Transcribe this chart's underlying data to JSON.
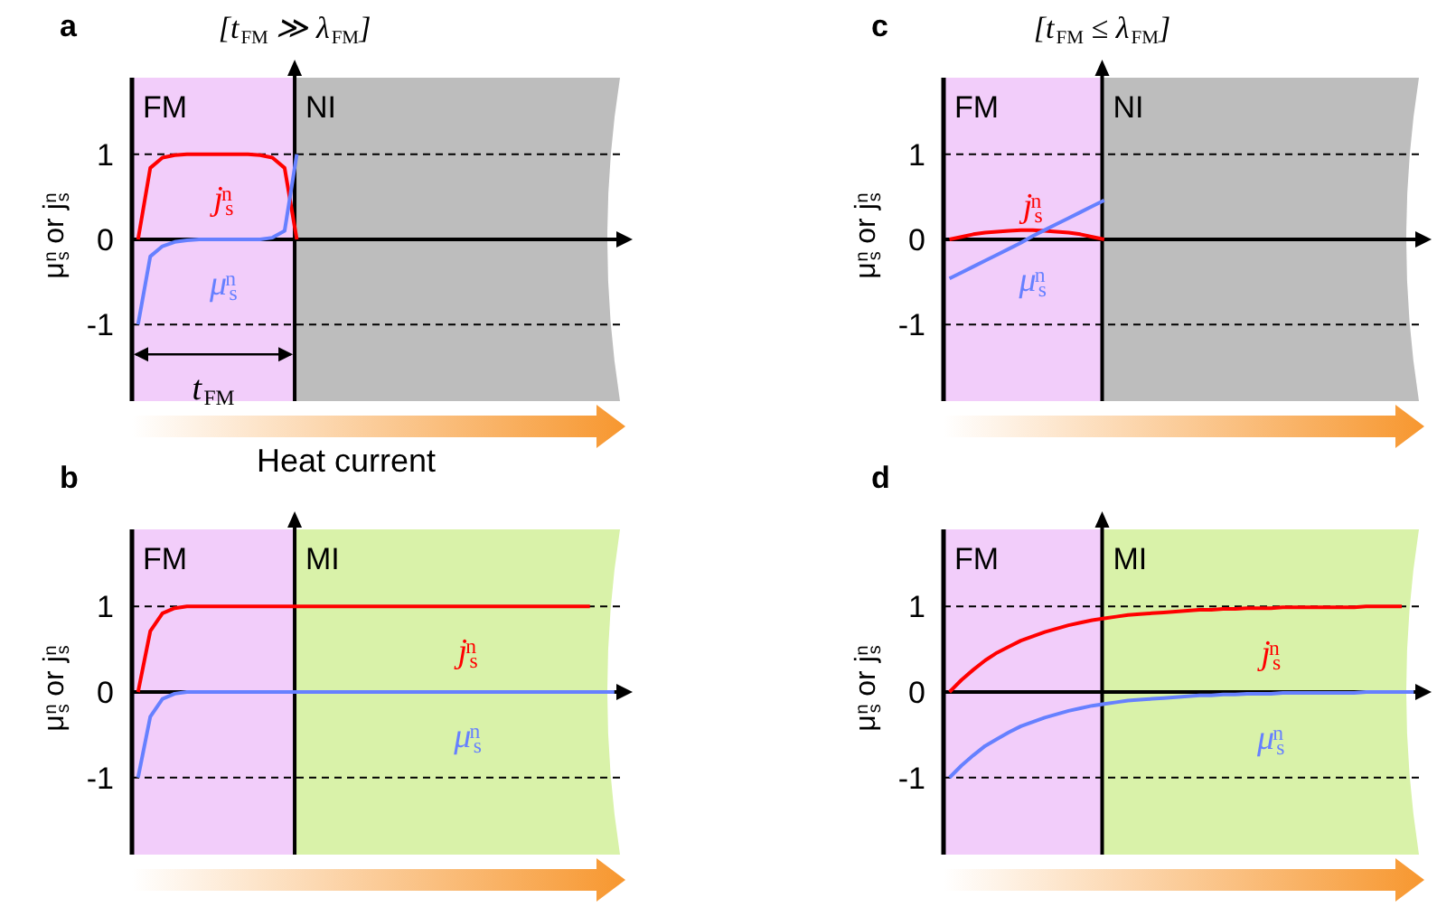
{
  "chart_data": [
    {
      "type": "line",
      "title": "a",
      "subtitle": "[t$_{FM}$ ≫ λ$_{FM}$]",
      "ylabel": "μ$_{s}$$^{n}$ or j$_{s}$$^{n}$",
      "ylim": [
        -1.9,
        1.9
      ],
      "yticks": [
        1,
        0,
        -1
      ],
      "tick_labels": "y",
      "grid": "y",
      "categories": [
        null,
        null,
        null,
        null,
        null,
        null,
        null,
        null,
        null,
        null,
        null,
        null,
        null,
        null,
        null,
        null,
        null,
        null,
        null,
        null,
        null,
        null,
        null,
        null,
        null,
        null,
        null,
        null,
        null,
        null,
        null,
        null,
        null,
        null,
        null,
        null,
        null,
        null,
        null,
        null,
        null
      ],
      "series": [
        {
          "name": "j$_{s}$$^{n}$",
          "color": "#ff0000",
          "values": [
            0,
            0.84,
            0.96,
            0.99,
            1,
            1,
            1,
            1,
            1,
            1,
            0.99,
            0.96,
            0.84,
            0,
            null,
            null,
            null,
            null,
            null,
            null,
            null,
            null,
            null,
            null,
            null,
            null,
            null,
            null,
            null,
            null,
            null,
            null,
            null,
            null,
            null,
            null,
            null,
            null,
            null,
            null,
            null
          ]
        },
        {
          "name": "μ$_{s}$$^{n}$",
          "color": "#6680ff",
          "values": [
            -1,
            -0.2,
            -0.08,
            -0.03,
            -0.01,
            0,
            0,
            0,
            0,
            0,
            0,
            0.02,
            0.1,
            1,
            null,
            null,
            null,
            null,
            null,
            null,
            null,
            null,
            null,
            null,
            null,
            null,
            null,
            null,
            null,
            null,
            null,
            null,
            null,
            null,
            null,
            null,
            null,
            null,
            null,
            null,
            null
          ]
        }
      ],
      "annotations": [
        "FM",
        "NI",
        "t$_{FM}$",
        "Heat current"
      ]
    },
    {
      "type": "line",
      "title": "c",
      "subtitle": "[t$_{FM}$ ≤ λ$_{FM}$]",
      "ylabel": "μ$_{s}$$^{n}$ or j$_{s}$$^{n}$",
      "ylim": [
        -1.9,
        1.9
      ],
      "yticks": [
        1,
        0,
        -1
      ],
      "tick_labels": "y",
      "grid": "y",
      "categories": [
        null,
        null,
        null,
        null,
        null,
        null,
        null,
        null,
        null,
        null,
        null,
        null,
        null,
        null,
        null,
        null,
        null,
        null,
        null,
        null,
        null,
        null,
        null,
        null,
        null,
        null,
        null,
        null,
        null,
        null,
        null,
        null,
        null,
        null,
        null,
        null,
        null,
        null,
        null,
        null,
        null
      ],
      "series": [
        {
          "name": "j$_{s}$$^{n}$",
          "color": "#ff0000",
          "values": [
            0,
            0.03,
            0.06,
            0.08,
            0.09,
            0.1,
            0.11,
            0.11,
            0.1,
            0.09,
            0.08,
            0.06,
            0.03,
            0,
            null,
            null,
            null,
            null,
            null,
            null,
            null,
            null,
            null,
            null,
            null,
            null,
            null,
            null,
            null,
            null,
            null,
            null,
            null,
            null,
            null,
            null,
            null,
            null,
            null,
            null,
            null
          ]
        },
        {
          "name": "μ$_{s}$$^{n}$",
          "color": "#6680ff",
          "values": [
            -0.46,
            -0.39,
            -0.32,
            -0.25,
            -0.18,
            -0.11,
            -0.04,
            0.04,
            0.11,
            0.18,
            0.25,
            0.32,
            0.39,
            0.46,
            null,
            null,
            null,
            null,
            null,
            null,
            null,
            null,
            null,
            null,
            null,
            null,
            null,
            null,
            null,
            null,
            null,
            null,
            null,
            null,
            null,
            null,
            null,
            null,
            null,
            null,
            null
          ]
        }
      ],
      "annotations": [
        "FM",
        "NI"
      ]
    },
    {
      "type": "line",
      "title": "b",
      "ylabel": "μ$_{s}$$^{n}$ or j$_{s}$$^{n}$",
      "ylim": [
        -1.9,
        1.9
      ],
      "yticks": [
        1,
        0,
        -1
      ],
      "tick_labels": "y",
      "grid": "y",
      "categories": [
        null,
        null,
        null,
        null,
        null,
        null,
        null,
        null,
        null,
        null,
        null,
        null,
        null,
        null,
        null,
        null,
        null,
        null,
        null,
        null,
        null,
        null,
        null,
        null,
        null,
        null,
        null,
        null,
        null,
        null,
        null,
        null,
        null,
        null,
        null,
        null,
        null,
        null,
        null,
        null,
        null
      ],
      "series": [
        {
          "name": "j$_{s}$$^{n}$",
          "color": "#ff0000",
          "values": [
            0,
            0.71,
            0.92,
            0.98,
            1,
            1,
            1,
            1,
            1,
            1,
            1,
            1,
            1,
            1,
            1,
            1,
            1,
            1,
            1,
            1,
            1,
            1,
            1,
            1,
            1,
            1,
            1,
            1,
            1,
            1,
            1,
            1,
            1,
            1,
            1,
            1,
            1,
            1,
            null,
            null,
            null
          ]
        },
        {
          "name": "μ$_{s}$$^{n}$",
          "color": "#6680ff",
          "values": [
            -1,
            -0.29,
            -0.08,
            -0.02,
            0,
            0,
            0,
            0,
            0,
            0,
            0,
            0,
            0,
            0,
            0,
            0,
            0,
            0,
            0,
            0,
            0,
            0,
            0,
            0,
            0,
            0,
            0,
            0,
            0,
            0,
            0,
            0,
            0,
            0,
            0,
            0,
            0,
            0,
            0,
            0,
            null
          ]
        }
      ],
      "annotations": [
        "FM",
        "MI"
      ]
    },
    {
      "type": "line",
      "title": "d",
      "ylabel": "μ$_{s}$$^{n}$ or j$_{s}$$^{n}$",
      "ylim": [
        -1.9,
        1.9
      ],
      "yticks": [
        1,
        0,
        -1
      ],
      "tick_labels": "y",
      "grid": "y",
      "categories": [
        null,
        null,
        null,
        null,
        null,
        null,
        null,
        null,
        null,
        null,
        null,
        null,
        null,
        null,
        null,
        null,
        null,
        null,
        null,
        null,
        null,
        null,
        null,
        null,
        null,
        null,
        null,
        null,
        null,
        null,
        null,
        null,
        null,
        null,
        null,
        null,
        null,
        null,
        null,
        null,
        null
      ],
      "series": [
        {
          "name": "j$_{s}$$^{n}$",
          "color": "#ff0000",
          "values": [
            0,
            0.14,
            0.26,
            0.37,
            0.46,
            0.53,
            0.6,
            0.65,
            0.7,
            0.74,
            0.78,
            0.81,
            0.84,
            0.86,
            0.88,
            0.9,
            0.91,
            0.92,
            0.93,
            0.94,
            0.95,
            0.96,
            0.96,
            0.97,
            0.97,
            0.98,
            0.98,
            0.98,
            0.99,
            0.99,
            0.99,
            0.99,
            0.99,
            0.99,
            0.99,
            1,
            1,
            1,
            1,
            null,
            null
          ]
        },
        {
          "name": "μ$_{s}$$^{n}$",
          "color": "#6680ff",
          "values": [
            -1,
            -0.86,
            -0.74,
            -0.63,
            -0.55,
            -0.47,
            -0.4,
            -0.35,
            -0.3,
            -0.26,
            -0.22,
            -0.19,
            -0.16,
            -0.14,
            -0.12,
            -0.1,
            -0.09,
            -0.08,
            -0.07,
            -0.06,
            -0.05,
            -0.04,
            -0.04,
            -0.03,
            -0.03,
            -0.02,
            -0.02,
            -0.02,
            -0.01,
            -0.01,
            -0.01,
            -0.01,
            -0.01,
            -0.01,
            -0.01,
            0,
            0,
            0,
            0,
            0,
            null
          ]
        }
      ],
      "annotations": [
        "FM",
        "MI"
      ]
    }
  ]
}
